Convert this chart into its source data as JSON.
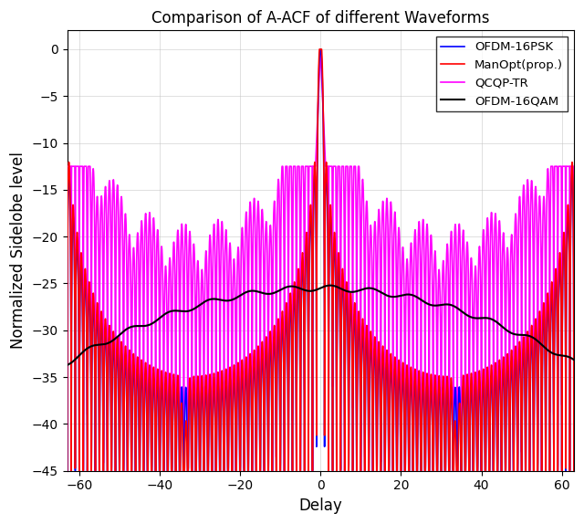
{
  "title": "Comparison of A-ACF of different Waveforms",
  "xlabel": "Delay",
  "ylabel": "Normalized Sidelobe level",
  "xlim": [
    -63,
    63
  ],
  "ylim": [
    -45,
    2
  ],
  "yticks": [
    0,
    -5,
    -10,
    -15,
    -20,
    -25,
    -30,
    -35,
    -40,
    -45
  ],
  "xticks": [
    -60,
    -40,
    -20,
    0,
    20,
    40,
    60
  ],
  "colors": {
    "ofdm16psk": "#0000FF",
    "manopt": "#FF0000",
    "qcqp": "#FF00FF",
    "ofdm16qam": "#000000"
  },
  "legend": [
    "OFDM-16PSK",
    "ManOpt(prop.)",
    "QCQP-TR",
    "OFDM-16QAM"
  ],
  "N": 64,
  "grid": true
}
